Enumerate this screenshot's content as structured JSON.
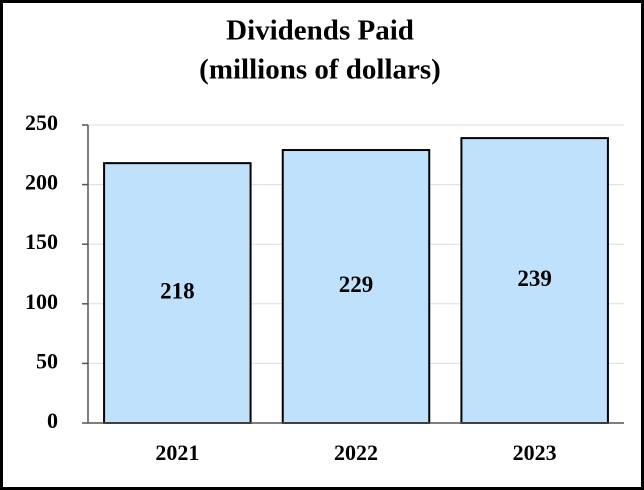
{
  "chart_data": {
    "type": "bar",
    "title": "Dividends Paid",
    "subtitle": "(millions of dollars)",
    "categories": [
      "2021",
      "2022",
      "2023"
    ],
    "values": [
      218,
      229,
      239
    ],
    "color": "#bfe1fb",
    "ylim": [
      0,
      250
    ],
    "yticks": [
      0,
      50,
      100,
      150,
      200,
      250
    ],
    "grid": true
  }
}
